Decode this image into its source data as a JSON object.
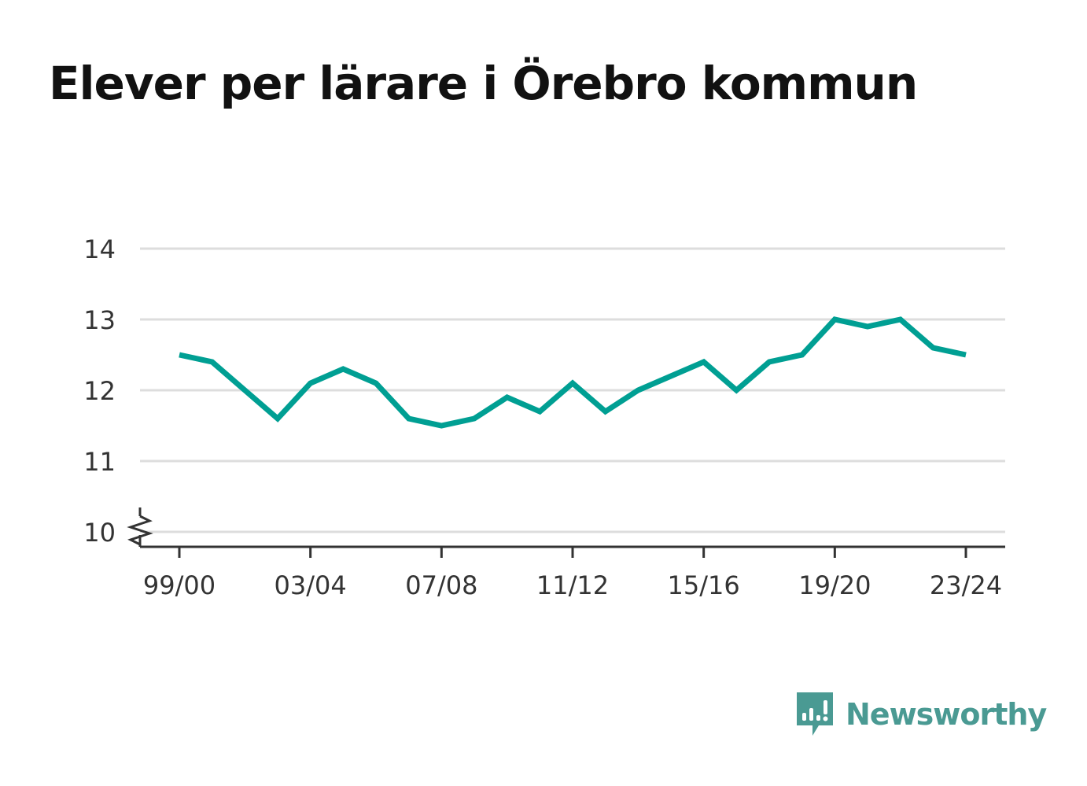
{
  "title": "Elever per lärare i Örebro kommun",
  "brand": {
    "name": "Newsworthy",
    "color": "#4a9a93",
    "icon": "newsworthy-logo-icon"
  },
  "chart_data": {
    "type": "line",
    "title": "Elever per lärare i Örebro kommun",
    "xlabel": "",
    "ylabel": "",
    "x": [
      "99/00",
      "00/01",
      "01/02",
      "02/03",
      "03/04",
      "04/05",
      "05/06",
      "06/07",
      "07/08",
      "08/09",
      "09/10",
      "10/11",
      "11/12",
      "12/13",
      "13/14",
      "14/15",
      "15/16",
      "16/17",
      "17/18",
      "18/19",
      "19/20",
      "20/21",
      "21/22",
      "22/23",
      "23/24"
    ],
    "series": [
      {
        "values": [
          12.5,
          12.4,
          12.0,
          11.6,
          12.1,
          12.3,
          12.1,
          11.6,
          11.5,
          11.6,
          11.9,
          11.7,
          12.1,
          11.7,
          12.0,
          12.2,
          12.4,
          12.0,
          12.4,
          12.5,
          13.0,
          12.9,
          13.0,
          12.6,
          12.5
        ],
        "color": "#009f93"
      }
    ],
    "xticks": [
      "99/00",
      "03/04",
      "07/08",
      "11/12",
      "15/16",
      "19/20",
      "23/24"
    ],
    "yticks": [
      10,
      11,
      12,
      13,
      14
    ],
    "ylim": [
      10,
      14
    ],
    "y_axis_break": true,
    "grid": true,
    "gridColor": "#dddddd",
    "axisColor": "#333333"
  }
}
